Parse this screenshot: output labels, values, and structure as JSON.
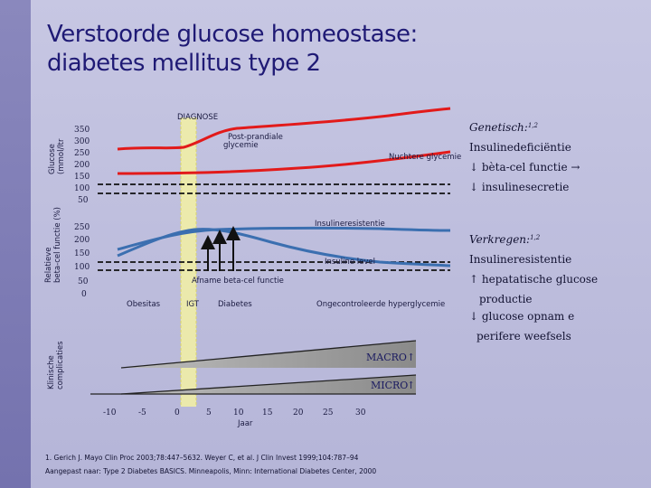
{
  "title_line1": "Verstoorde glucose homeostase:",
  "title_line2": "diabetes mellitus type 2",
  "diagnose_label": "DIAGNOSE",
  "axis_glucose": {
    "label_line1": "Glucose",
    "label_line2": "(mmol/ltr",
    "ticks": [
      "350",
      "300",
      "250",
      "200",
      "150",
      "100",
      "50"
    ]
  },
  "axis_beta": {
    "label_line1": "Relatieve",
    "label_line2": "beta-cel functie (%)",
    "ticks": [
      "250",
      "200",
      "150",
      "100",
      "50",
      "0"
    ]
  },
  "axis_complications": {
    "label_line1": "Klinische",
    "label_line2": "complicaties"
  },
  "curves": {
    "postprandial_line1": "Post-prandiale",
    "postprandial_line2": "glycemie",
    "fasting": "Nuchtere glycemie",
    "insulin_resistance": "Insulineresistentie",
    "insulin_level": "Insuline level",
    "beta_cell_decline": "Afname beta-cel functie"
  },
  "stages": {
    "obesity": "Obesitas",
    "igt": "IGT",
    "diabetes": "Diabetes",
    "uncontrolled": "Ongecontroleerde hyperglycemie"
  },
  "complications": {
    "macro": "MACRO",
    "micro": "MICRO",
    "arrow": "↑"
  },
  "x_axis": {
    "ticks": [
      "-10",
      "-5",
      "0",
      "5",
      "10",
      "15",
      "20",
      "25",
      "30"
    ],
    "label": "Jaar"
  },
  "right_panel": {
    "genetic_title": "Genetisch:",
    "genetic_sup": "1,2",
    "genetic_items": [
      "Insulinedeficiëntie",
      "↓ bèta-cel functie →",
      "↓ insulinesecretie"
    ],
    "acquired_title": "Verkregen:",
    "acquired_sup": "1,2",
    "acquired_items": [
      "Insulineresistentie",
      "↑ hepatatische glucose",
      "productie",
      "↓ glucose opnam e",
      "perifere  weefsels"
    ]
  },
  "references": {
    "line1": "1. Gerich J. Mayo Clin Proc 2003;78:447–5632. Weyer C, et al. J Clin Invest 1999;104:787–94",
    "line2": "Aangepast naar: Type 2 Diabetes BASICS. Minneapolis, Minn: International Diabetes Center, 2000"
  },
  "colors": {
    "title": "#1f1a75",
    "glucose_curve": "#e21a1a",
    "beta_curve": "#3b6fb0",
    "igt_band": "#f3f1a3",
    "complication_fill": "#8f8f8f"
  }
}
